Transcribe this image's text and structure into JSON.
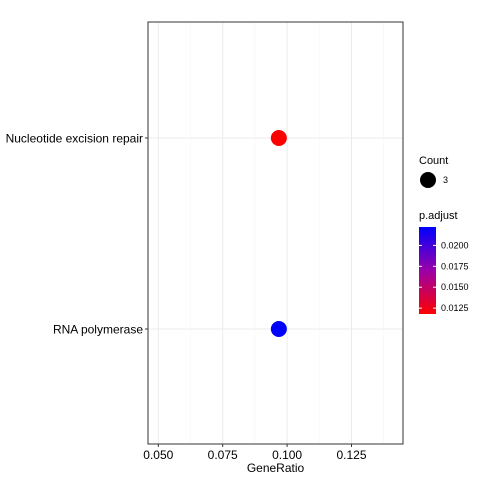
{
  "chart_data": {
    "type": "scatter",
    "xlabel": "GeneRatio",
    "ylabel": "",
    "xlim": [
      0.046,
      0.145
    ],
    "x_ticks": [
      "0.050",
      "0.075",
      "0.100",
      "0.125"
    ],
    "x_tick_values": [
      0.05,
      0.075,
      0.1,
      0.125
    ],
    "grid": true,
    "categories": [
      "Nucleotide excision repair",
      "RNA polymerase"
    ],
    "points": [
      {
        "category": "Nucleotide excision repair",
        "x": 0.0968,
        "count": 3,
        "p_adjust": 0.0118,
        "color": "#ff0000"
      },
      {
        "category": "RNA polymerase",
        "x": 0.0968,
        "count": 3,
        "p_adjust": 0.0222,
        "color": "#0000ff"
      }
    ],
    "legend_position": "right",
    "size_legend": {
      "title": "Count",
      "entries": [
        {
          "label": "3",
          "value": 3
        }
      ]
    },
    "color_legend": {
      "title": "p.adjust",
      "low_color": "#ff0000",
      "high_color": "#0000ff",
      "range": [
        0.0118,
        0.0222
      ],
      "ticks": [
        "0.0125",
        "0.0150",
        "0.0175",
        "0.0200"
      ],
      "tick_values": [
        0.0125,
        0.015,
        0.0175,
        0.02
      ]
    }
  },
  "colors": {
    "panel_border": "#333333",
    "grid_major": "#ebebeb",
    "grid_minor": "#f5f5f5",
    "axis_text": "#4d4d4d",
    "label_text": "#000000"
  }
}
